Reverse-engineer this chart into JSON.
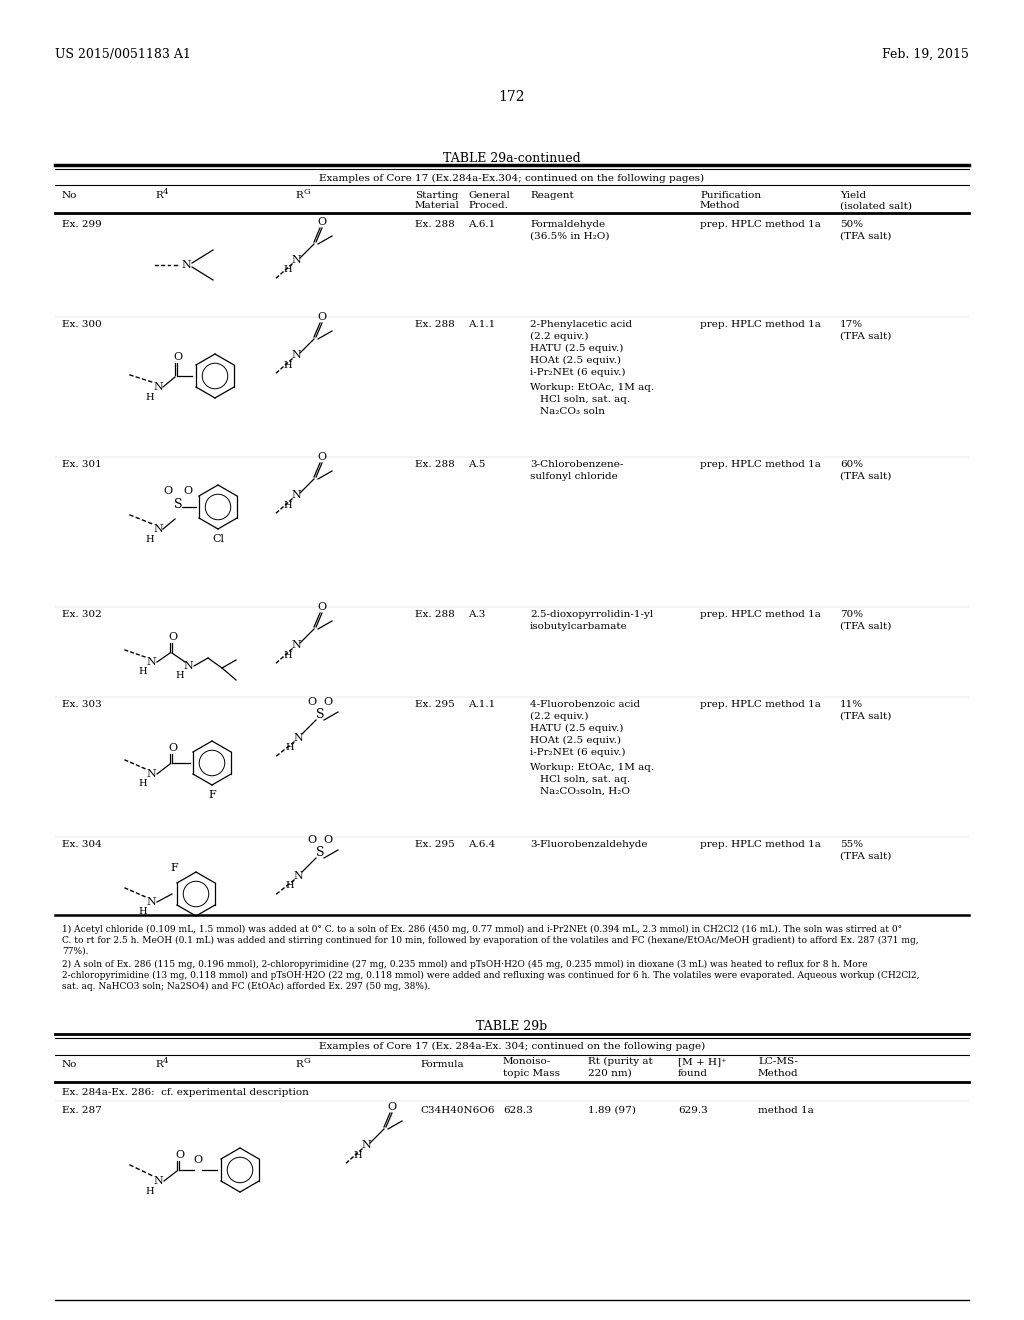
{
  "page_header_left": "US 2015/0051183 A1",
  "page_header_right": "Feb. 19, 2015",
  "page_number": "172",
  "table1_title": "TABLE 29a-continued",
  "table1_subtitle": "Examples of Core 17 (Ex.284a-Ex.304; continued on the following pages)",
  "footnote1": "1) Acetyl chloride (0.109 mL, 1.5 mmol) was added at 0° C. to a soln of Ex. 286 (450 mg, 0.77 mmol) and i-Pr2NEt (0.394 mL, 2.3 mmol) in CH2Cl2 (16 mL). The soln was stirred at 0°",
  "footnote1b": "C. to rt for 2.5 h. MeOH (0.1 mL) was added and stirring continued for 10 min, followed by evaporation of the volatiles and FC (hexane/EtOAc/MeOH gradient) to afford Ex. 287 (371 mg,",
  "footnote1c": "77%).",
  "footnote2": "2) A soln of Ex. 286 (115 mg, 0.196 mmol), 2-chloropyrimidine (27 mg, 0.235 mmol) and pTsOH·H2O (45 mg, 0.235 mmol) in dioxane (3 mL) was heated to reflux for 8 h. More",
  "footnote2b": "2-chloropyrimidine (13 mg, 0.118 mmol) and pTsOH·H2O (22 mg, 0.118 mmol) were added and refluxing was continued for 6 h. The volatiles were evaporated. Aqueous workup (CH2Cl2,",
  "footnote2c": "sat. aq. NaHCO3 soln; Na2SO4) and FC (EtOAc) afforded Ex. 297 (50 mg, 38%).",
  "table2_title": "TABLE 29b",
  "table2_subtitle": "Examples of Core 17 (Ex. 284a-Ex. 304; continued on the following page)",
  "bg_color": "#ffffff"
}
